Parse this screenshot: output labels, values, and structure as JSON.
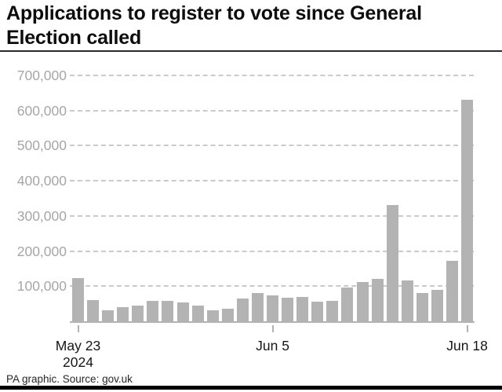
{
  "title": "Applications to register to vote since General Election called",
  "footer": {
    "text": "PA graphic. Source: gov.uk"
  },
  "colors": {
    "bar": "#b3b3b3",
    "gridline": "#cacaca",
    "axis": "#b3b3b3",
    "y_label": "#a6a6a6",
    "x_label": "#161616",
    "title_text": "#0d0d0d",
    "top_rule": "#2b2b2b",
    "bottom_bar": "#000000"
  },
  "chart_data": {
    "type": "bar",
    "title": "Applications to register to vote since General Election called",
    "categories": [
      "May 23",
      "May 24",
      "May 25",
      "May 26",
      "May 27",
      "May 28",
      "May 29",
      "May 30",
      "May 31",
      "Jun 1",
      "Jun 2",
      "Jun 3",
      "Jun 4",
      "Jun 5",
      "Jun 6",
      "Jun 7",
      "Jun 8",
      "Jun 9",
      "Jun 10",
      "Jun 11",
      "Jun 12",
      "Jun 13",
      "Jun 14",
      "Jun 15",
      "Jun 16",
      "Jun 17",
      "Jun 18"
    ],
    "values": [
      122000,
      60000,
      32000,
      41000,
      45000,
      58000,
      57000,
      54000,
      45000,
      31000,
      35000,
      65000,
      80000,
      73000,
      67000,
      69000,
      56000,
      59000,
      95000,
      111000,
      120000,
      330000,
      117000,
      81000,
      89000,
      171000,
      631000
    ],
    "xlabel": "",
    "ylabel": "",
    "ylim": [
      0,
      700000
    ],
    "ytick_step": 100000,
    "ytick_labels": [
      "100,000",
      "200,000",
      "300,000",
      "400,000",
      "500,000",
      "600,000",
      "700,000"
    ],
    "grid": "horizontal-dashed",
    "legend": "none",
    "xticks": [
      {
        "index": 0,
        "label": "May 23",
        "sublabel": "2024"
      },
      {
        "index": 13,
        "label": "Jun 5",
        "sublabel": ""
      },
      {
        "index": 26,
        "label": "Jun 18",
        "sublabel": ""
      }
    ]
  }
}
